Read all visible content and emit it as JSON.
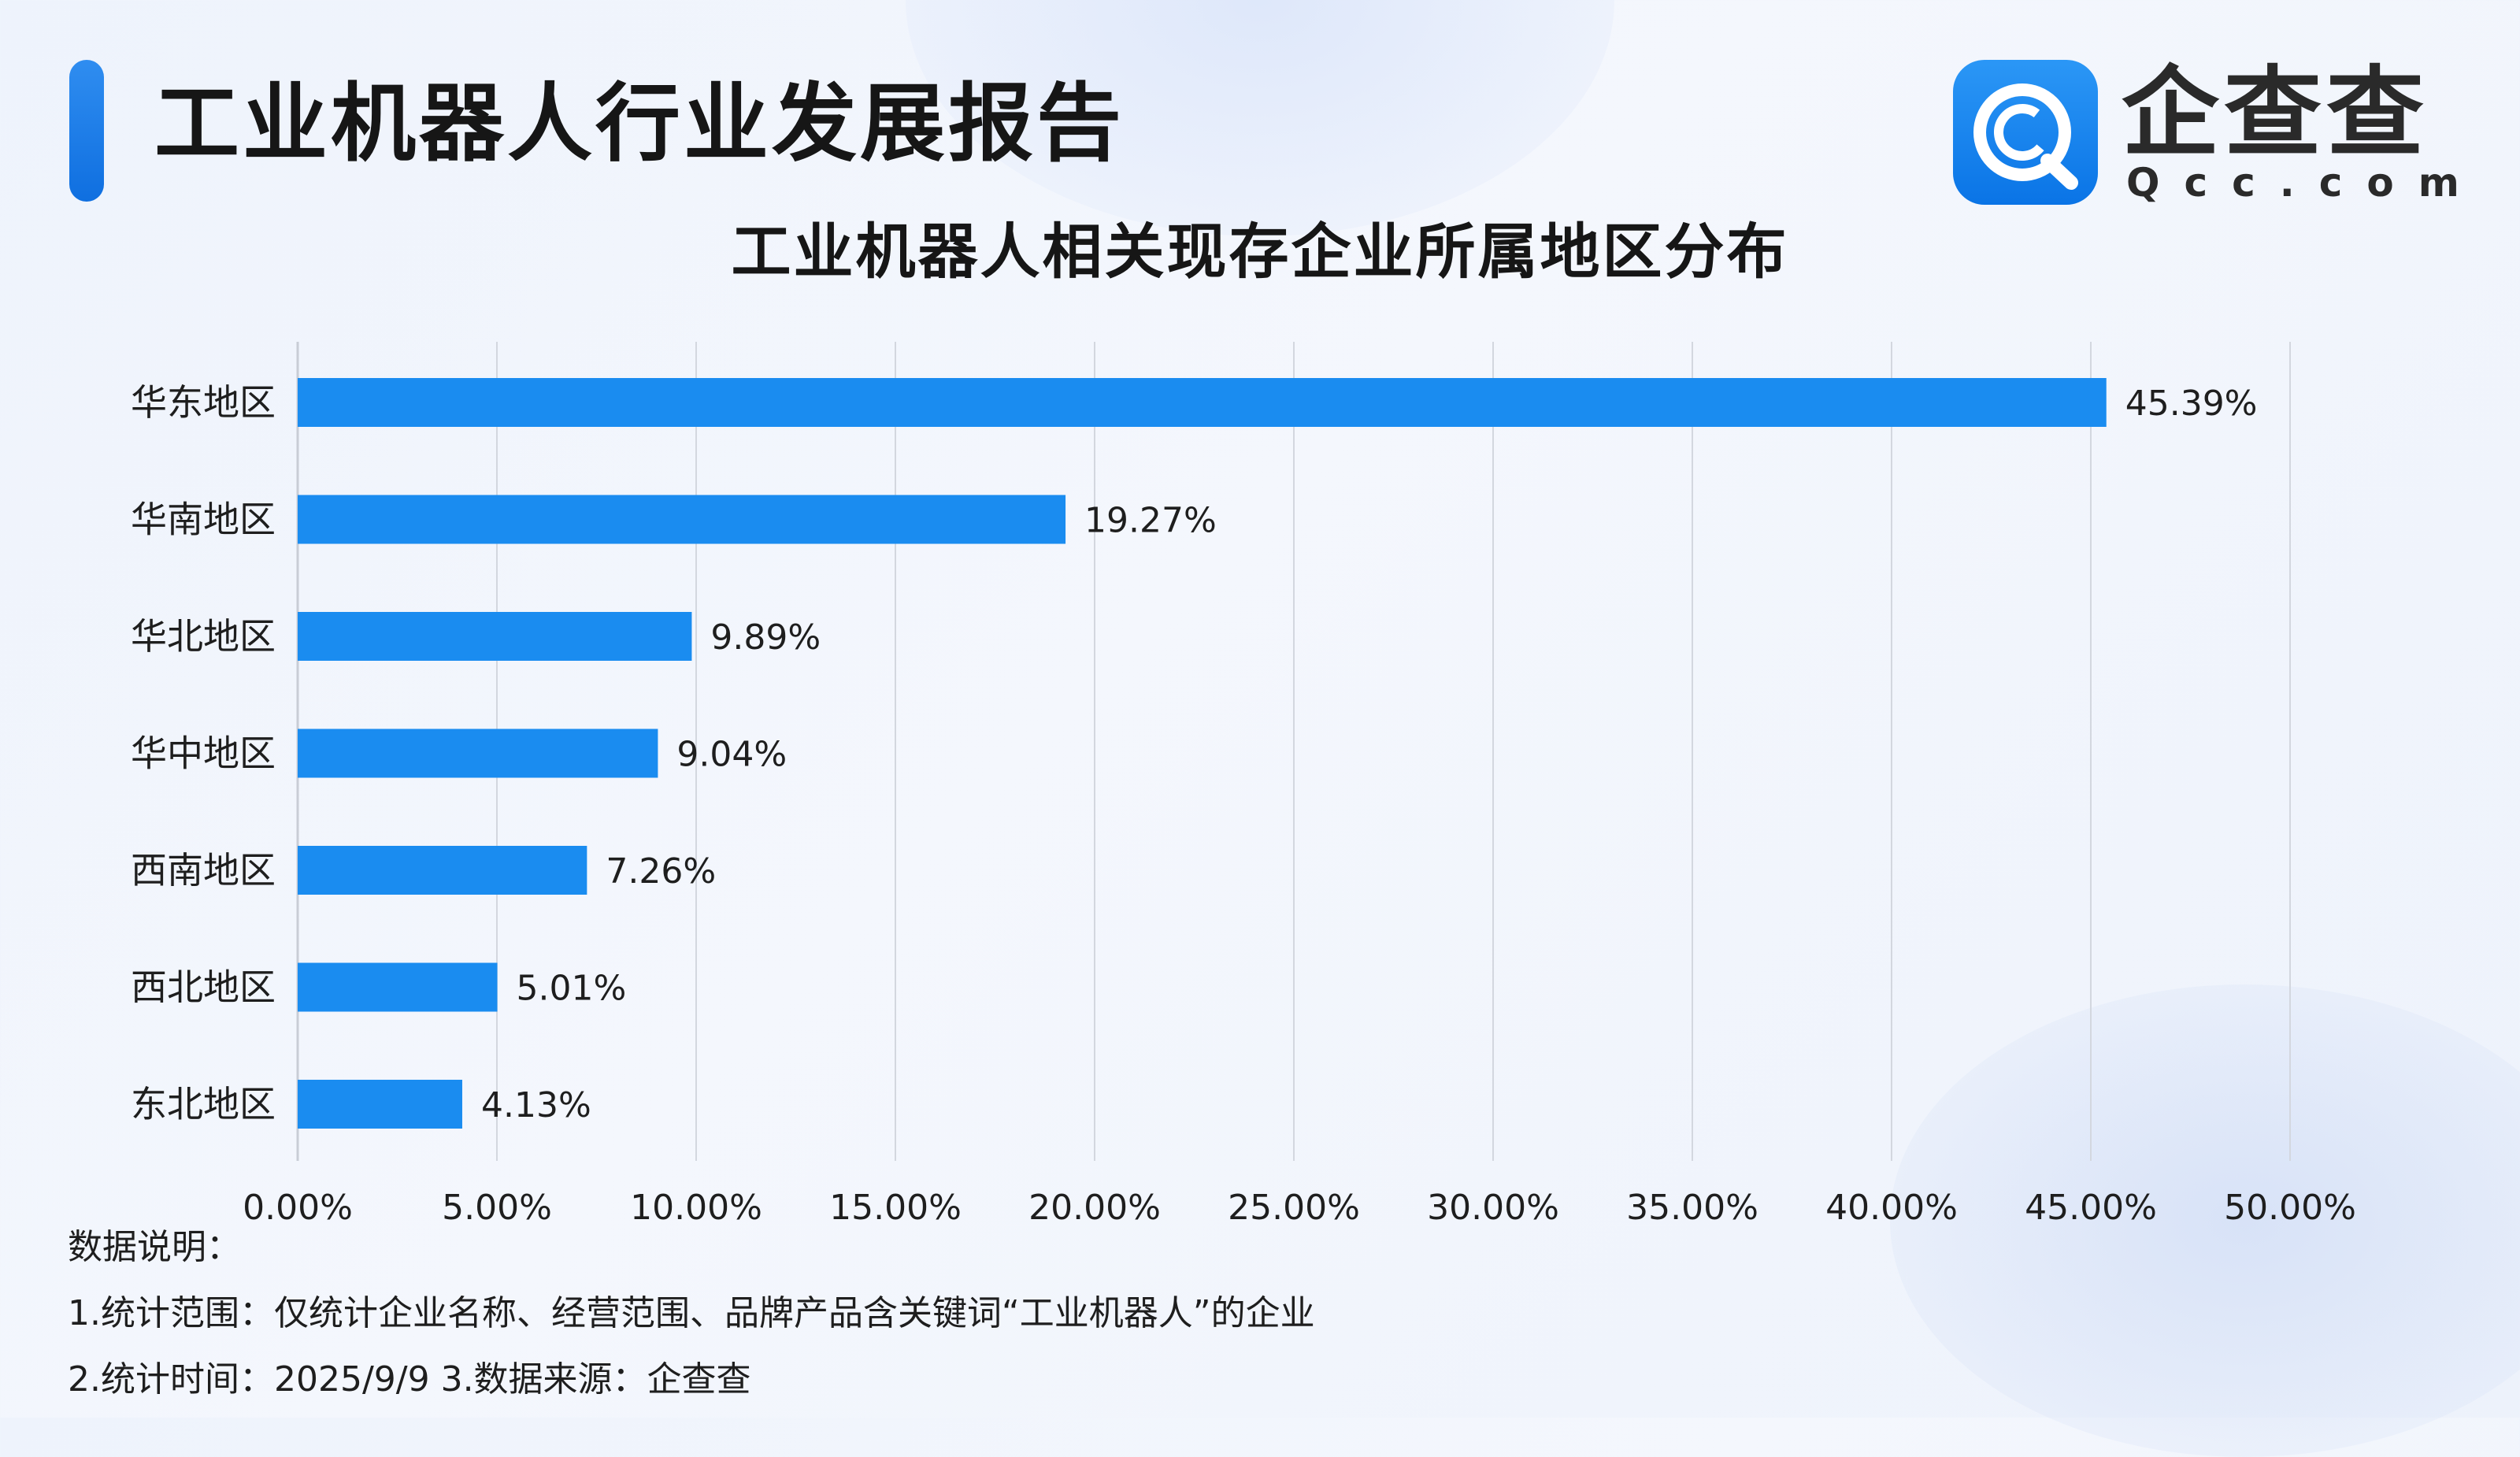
{
  "header": {
    "report_title": "工业机器人行业发展报告",
    "logo_cn": "企查查",
    "logo_en": "Qcc.com",
    "icon": "qcc-logo-icon",
    "accent_color": "#1a8cf0"
  },
  "chart_data": {
    "type": "bar",
    "orientation": "horizontal",
    "title": "工业机器人相关现存企业所属地区分布",
    "xlabel": "",
    "ylabel": "",
    "categories": [
      "华东地区",
      "华南地区",
      "华北地区",
      "华中地区",
      "西南地区",
      "西北地区",
      "东北地区"
    ],
    "values": [
      45.39,
      19.27,
      9.89,
      9.04,
      7.26,
      5.01,
      4.13
    ],
    "value_labels": [
      "45.39%",
      "19.27%",
      "9.89%",
      "9.04%",
      "7.26%",
      "5.01%",
      "4.13%"
    ],
    "xlim": [
      0,
      50
    ],
    "xticks": [
      0,
      5,
      10,
      15,
      20,
      25,
      30,
      35,
      40,
      45,
      50
    ],
    "xtick_labels": [
      "0.00%",
      "5.00%",
      "10.00%",
      "15.00%",
      "20.00%",
      "25.00%",
      "30.00%",
      "35.00%",
      "40.00%",
      "45.00%",
      "50.00%"
    ],
    "grid": "vertical",
    "legend": "none",
    "bar_color": "#1a8cf0"
  },
  "notes": {
    "heading": "数据说明：",
    "line1": "1.统计范围：仅统计企业名称、经营范围、品牌产品含关键词“工业机器人”的企业",
    "line2": "2.统计时间：2025/9/9  3.数据来源：企查查"
  }
}
